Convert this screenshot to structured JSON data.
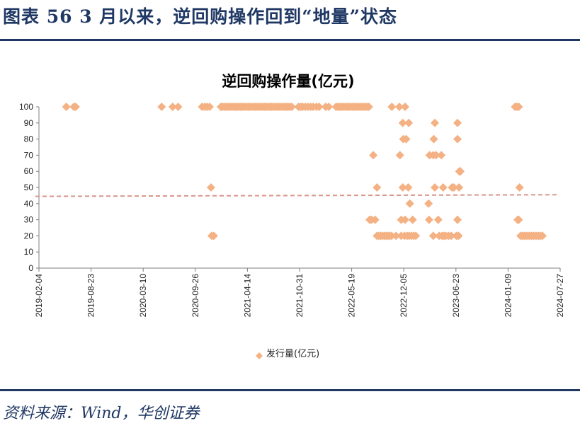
{
  "figure": {
    "title": "图表 56    3 月以来，逆回购操作回到“地量”状态",
    "source": "资料来源：Wind，华创证券"
  },
  "colors": {
    "marker": "#f4b183",
    "trend": "#d9968a",
    "axis": "#7f7f7f",
    "rule": "#1f3864"
  },
  "chart_data": {
    "type": "scatter",
    "title": "逆回购操作量(亿元)",
    "xlabel": "",
    "ylabel": "",
    "ylim": [
      0,
      100
    ],
    "yticks": [
      0,
      10,
      20,
      30,
      40,
      50,
      60,
      70,
      80,
      90,
      100
    ],
    "xlim": [
      "2019-02-04",
      "2024-07-27"
    ],
    "xtick_labels": [
      "2019-02-04",
      "2019-08-23",
      "2020-03-10",
      "2020-09-26",
      "2021-04-14",
      "2021-10-31",
      "2022-05-19",
      "2022-12-05",
      "2023-06-23",
      "2024-01-09",
      "2024-07-27"
    ],
    "legend": {
      "label": "发行量(亿元)",
      "position": "bottom"
    },
    "trendline": {
      "start": 44.5,
      "end": 45.5,
      "style": "dashed"
    },
    "series": [
      {
        "name": "发行量(亿元)",
        "points": [
          [
            "2019-05-20",
            100
          ],
          [
            "2019-06-18",
            100
          ],
          [
            "2019-06-25",
            100
          ],
          [
            "2020-05-20",
            100
          ],
          [
            "2020-07-01",
            100
          ],
          [
            "2020-07-22",
            100
          ],
          [
            "2020-10-22",
            100
          ],
          [
            "2020-11-01",
            100
          ],
          [
            "2020-11-10",
            100
          ],
          [
            "2020-11-20",
            100
          ],
          [
            "2020-11-25",
            50
          ],
          [
            "2020-11-28",
            20
          ],
          [
            "2020-12-06",
            20
          ],
          [
            "2021-01-02",
            100
          ],
          [
            "2021-01-08",
            100
          ],
          [
            "2021-01-15",
            100
          ],
          [
            "2021-01-22",
            100
          ],
          [
            "2021-01-29",
            100
          ],
          [
            "2021-02-05",
            100
          ],
          [
            "2021-02-12",
            100
          ],
          [
            "2021-02-19",
            100
          ],
          [
            "2021-02-26",
            100
          ],
          [
            "2021-03-05",
            100
          ],
          [
            "2021-03-12",
            100
          ],
          [
            "2021-03-19",
            100
          ],
          [
            "2021-03-26",
            100
          ],
          [
            "2021-04-02",
            100
          ],
          [
            "2021-04-09",
            100
          ],
          [
            "2021-04-16",
            100
          ],
          [
            "2021-04-23",
            100
          ],
          [
            "2021-04-30",
            100
          ],
          [
            "2021-05-07",
            100
          ],
          [
            "2021-05-14",
            100
          ],
          [
            "2021-05-21",
            100
          ],
          [
            "2021-05-28",
            100
          ],
          [
            "2021-06-04",
            100
          ],
          [
            "2021-06-11",
            100
          ],
          [
            "2021-06-18",
            100
          ],
          [
            "2021-06-25",
            100
          ],
          [
            "2021-07-02",
            100
          ],
          [
            "2021-07-09",
            100
          ],
          [
            "2021-07-16",
            100
          ],
          [
            "2021-07-23",
            100
          ],
          [
            "2021-07-30",
            100
          ],
          [
            "2021-08-06",
            100
          ],
          [
            "2021-08-13",
            100
          ],
          [
            "2021-08-20",
            100
          ],
          [
            "2021-08-27",
            100
          ],
          [
            "2021-09-03",
            100
          ],
          [
            "2021-09-10",
            100
          ],
          [
            "2021-09-17",
            100
          ],
          [
            "2021-09-24",
            100
          ],
          [
            "2021-10-01",
            100
          ],
          [
            "2021-10-27",
            100
          ],
          [
            "2021-11-05",
            100
          ],
          [
            "2021-11-12",
            100
          ],
          [
            "2021-11-22",
            100
          ],
          [
            "2021-12-02",
            100
          ],
          [
            "2021-12-12",
            100
          ],
          [
            "2021-12-22",
            100
          ],
          [
            "2022-01-04",
            100
          ],
          [
            "2022-01-14",
            100
          ],
          [
            "2022-02-08",
            100
          ],
          [
            "2022-02-20",
            100
          ],
          [
            "2022-03-20",
            100
          ],
          [
            "2022-03-27",
            100
          ],
          [
            "2022-04-03",
            100
          ],
          [
            "2022-04-10",
            100
          ],
          [
            "2022-04-17",
            100
          ],
          [
            "2022-04-24",
            100
          ],
          [
            "2022-05-01",
            100
          ],
          [
            "2022-05-08",
            100
          ],
          [
            "2022-05-15",
            100
          ],
          [
            "2022-05-22",
            100
          ],
          [
            "2022-05-29",
            100
          ],
          [
            "2022-06-05",
            100
          ],
          [
            "2022-06-12",
            100
          ],
          [
            "2022-06-19",
            100
          ],
          [
            "2022-06-26",
            100
          ],
          [
            "2022-07-03",
            100
          ],
          [
            "2022-07-10",
            100
          ],
          [
            "2022-07-17",
            100
          ],
          [
            "2022-07-24",
            100
          ],
          [
            "2022-07-27",
            30
          ],
          [
            "2022-08-03",
            30
          ],
          [
            "2022-08-10",
            70
          ],
          [
            "2022-08-17",
            30
          ],
          [
            "2022-08-24",
            50
          ],
          [
            "2022-08-24",
            20
          ],
          [
            "2022-08-31",
            20
          ],
          [
            "2022-09-07",
            20
          ],
          [
            "2022-09-14",
            20
          ],
          [
            "2022-09-21",
            20
          ],
          [
            "2022-09-28",
            20
          ],
          [
            "2022-10-05",
            20
          ],
          [
            "2022-10-12",
            20
          ],
          [
            "2022-10-19",
            20
          ],
          [
            "2022-10-20",
            100
          ],
          [
            "2022-11-05",
            20
          ],
          [
            "2022-11-18",
            100
          ],
          [
            "2022-11-20",
            70
          ],
          [
            "2022-11-25",
            20
          ],
          [
            "2022-11-25",
            30
          ],
          [
            "2022-12-01",
            90
          ],
          [
            "2022-12-01",
            50
          ],
          [
            "2022-12-03",
            80
          ],
          [
            "2022-12-08",
            20
          ],
          [
            "2022-12-10",
            100
          ],
          [
            "2022-12-10",
            30
          ],
          [
            "2022-12-14",
            80
          ],
          [
            "2022-12-18",
            20
          ],
          [
            "2022-12-22",
            50
          ],
          [
            "2022-12-24",
            90
          ],
          [
            "2022-12-26",
            20
          ],
          [
            "2022-12-28",
            40
          ],
          [
            "2023-01-04",
            20
          ],
          [
            "2023-01-08",
            30
          ],
          [
            "2023-01-12",
            20
          ],
          [
            "2023-01-20",
            20
          ],
          [
            "2023-03-10",
            40
          ],
          [
            "2023-03-12",
            30
          ],
          [
            "2023-03-14",
            70
          ],
          [
            "2023-03-28",
            20
          ],
          [
            "2023-03-28",
            70
          ],
          [
            "2023-03-30",
            80
          ],
          [
            "2023-04-03",
            90
          ],
          [
            "2023-04-03",
            50
          ],
          [
            "2023-04-08",
            70
          ],
          [
            "2023-04-16",
            30
          ],
          [
            "2023-04-20",
            20
          ],
          [
            "2023-04-28",
            70
          ],
          [
            "2023-05-01",
            20
          ],
          [
            "2023-05-05",
            50
          ],
          [
            "2023-05-08",
            20
          ],
          [
            "2023-05-15",
            20
          ],
          [
            "2023-05-25",
            20
          ],
          [
            "2023-06-05",
            20
          ],
          [
            "2023-06-08",
            50
          ],
          [
            "2023-06-15",
            50
          ],
          [
            "2023-06-25",
            20
          ],
          [
            "2023-06-29",
            90
          ],
          [
            "2023-06-29",
            80
          ],
          [
            "2023-06-29",
            30
          ],
          [
            "2023-07-03",
            20
          ],
          [
            "2023-07-05",
            50
          ],
          [
            "2023-07-06",
            60
          ],
          [
            "2023-07-10",
            60
          ],
          [
            "2024-02-05",
            100
          ],
          [
            "2024-02-12",
            100
          ],
          [
            "2024-02-19",
            100
          ],
          [
            "2024-02-15",
            30
          ],
          [
            "2024-02-19",
            30
          ],
          [
            "2024-02-22",
            50
          ],
          [
            "2024-02-26",
            20
          ],
          [
            "2024-03-04",
            20
          ],
          [
            "2024-03-11",
            20
          ],
          [
            "2024-03-18",
            20
          ],
          [
            "2024-03-25",
            20
          ],
          [
            "2024-04-01",
            20
          ],
          [
            "2024-04-08",
            20
          ],
          [
            "2024-04-15",
            20
          ],
          [
            "2024-04-22",
            20
          ],
          [
            "2024-04-29",
            20
          ],
          [
            "2024-05-06",
            20
          ],
          [
            "2024-05-13",
            20
          ],
          [
            "2024-05-20",
            20
          ]
        ]
      }
    ]
  }
}
